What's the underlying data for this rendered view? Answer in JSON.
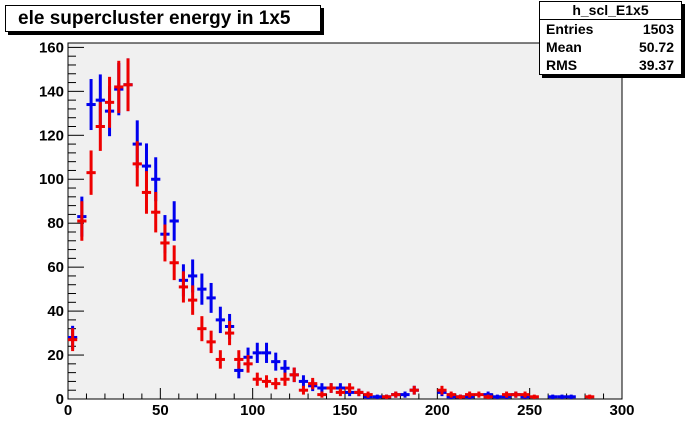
{
  "chart_data": {
    "type": "scatter",
    "title": "ele supercluster energy in 1x5",
    "xlabel": "",
    "ylabel": "",
    "xlim": [
      0,
      300
    ],
    "ylim": [
      0,
      162
    ],
    "x_ticks": [
      "0",
      "50",
      "100",
      "150",
      "200",
      "250",
      "300"
    ],
    "y_ticks": [
      "0",
      "20",
      "40",
      "60",
      "80",
      "100",
      "120",
      "140",
      "160"
    ],
    "grid": false,
    "bin_width": 5,
    "plot_background": "#f0f0f0",
    "series": [
      {
        "color": "#0000ee",
        "x": [
          2.5,
          7.5,
          12.5,
          17.5,
          22.5,
          27.5,
          32.5,
          37.5,
          42.5,
          47.5,
          52.5,
          57.5,
          62.5,
          67.5,
          72.5,
          77.5,
          82.5,
          87.5,
          92.5,
          97.5,
          102.5,
          107.5,
          112.5,
          117.5,
          122.5,
          127.5,
          132.5,
          137.5,
          142.5,
          147.5,
          152.5,
          157.5,
          162.5,
          167.5,
          172.5,
          177.5,
          182.5,
          187.5,
          192.5,
          197.5,
          202.5,
          207.5,
          212.5,
          217.5,
          222.5,
          227.5,
          232.5,
          237.5,
          242.5,
          247.5,
          252.5,
          257.5,
          262.5,
          267.5,
          272.5,
          277.5,
          282.5,
          287.5,
          292.5
        ],
        "y": [
          28,
          83,
          134,
          136,
          131,
          141,
          143,
          116,
          106,
          100,
          75,
          81,
          54,
          56,
          50,
          46,
          36,
          33,
          13,
          19,
          21,
          21,
          17,
          14,
          11,
          8,
          6,
          5,
          5,
          5,
          3,
          3,
          1,
          1,
          1,
          2,
          2,
          4,
          0,
          0,
          3,
          1,
          1,
          1,
          0,
          2,
          1,
          1,
          2,
          1,
          0,
          0,
          1,
          1,
          1,
          0,
          0,
          0,
          0
        ],
        "err": [
          5.3,
          9.1,
          11.6,
          11.7,
          11.4,
          11.9,
          12.0,
          10.8,
          10.3,
          10.0,
          8.7,
          9.0,
          7.3,
          7.5,
          7.1,
          6.8,
          6.0,
          5.7,
          3.6,
          4.4,
          4.6,
          4.6,
          4.1,
          3.7,
          3.3,
          2.8,
          2.4,
          2.2,
          2.2,
          2.2,
          1.7,
          1.7,
          1.0,
          1.0,
          1.0,
          1.4,
          1.4,
          2.0,
          0,
          0,
          1.7,
          1.0,
          1.0,
          1.0,
          0,
          1.4,
          1.0,
          1.0,
          1.4,
          1.0,
          0,
          0,
          1.0,
          1.0,
          1.0,
          0,
          0,
          0,
          0
        ]
      },
      {
        "color": "#ee0000",
        "x": [
          2.5,
          7.5,
          12.5,
          17.5,
          22.5,
          27.5,
          32.5,
          37.5,
          42.5,
          47.5,
          52.5,
          57.5,
          62.5,
          67.5,
          72.5,
          77.5,
          82.5,
          87.5,
          92.5,
          97.5,
          102.5,
          107.5,
          112.5,
          117.5,
          122.5,
          127.5,
          132.5,
          137.5,
          142.5,
          147.5,
          152.5,
          157.5,
          162.5,
          167.5,
          172.5,
          177.5,
          182.5,
          187.5,
          192.5,
          197.5,
          202.5,
          207.5,
          212.5,
          217.5,
          222.5,
          227.5,
          232.5,
          237.5,
          242.5,
          247.5,
          252.5,
          257.5,
          262.5,
          267.5,
          272.5,
          277.5,
          282.5,
          287.5,
          292.5
        ],
        "y": [
          27,
          81,
          103,
          124,
          135,
          142,
          143,
          107,
          94,
          85,
          71,
          62,
          51,
          45,
          32,
          26,
          18,
          30,
          18,
          16,
          9,
          8,
          7,
          9,
          11,
          4,
          7,
          2,
          5,
          3,
          5,
          3,
          2,
          0,
          1,
          2,
          0,
          4,
          0,
          0,
          4,
          2,
          1,
          2,
          2,
          1,
          0,
          2,
          2,
          2,
          1,
          0,
          0,
          0,
          0,
          0,
          1,
          0,
          0
        ],
        "err": [
          5.2,
          9.0,
          10.1,
          11.1,
          11.6,
          11.9,
          12.0,
          10.3,
          9.7,
          9.2,
          8.4,
          7.9,
          7.1,
          6.7,
          5.7,
          5.1,
          4.2,
          5.5,
          4.2,
          4.0,
          3.0,
          2.8,
          2.6,
          3.0,
          3.3,
          2.0,
          2.6,
          1.4,
          2.2,
          1.7,
          2.2,
          1.7,
          1.4,
          0,
          1.0,
          1.4,
          0,
          2.0,
          0,
          0,
          2.0,
          1.4,
          1.0,
          1.4,
          1.4,
          1.0,
          0,
          1.4,
          1.4,
          1.4,
          1.0,
          0,
          0,
          0,
          0,
          0,
          1.0,
          0,
          0
        ]
      }
    ]
  },
  "stats_box": {
    "title": "h_scl_E1x5",
    "rows": [
      {
        "label": "Entries",
        "value": "1503"
      },
      {
        "label": "Mean",
        "value": "50.72"
      },
      {
        "label": "RMS",
        "value": "39.37"
      }
    ]
  }
}
